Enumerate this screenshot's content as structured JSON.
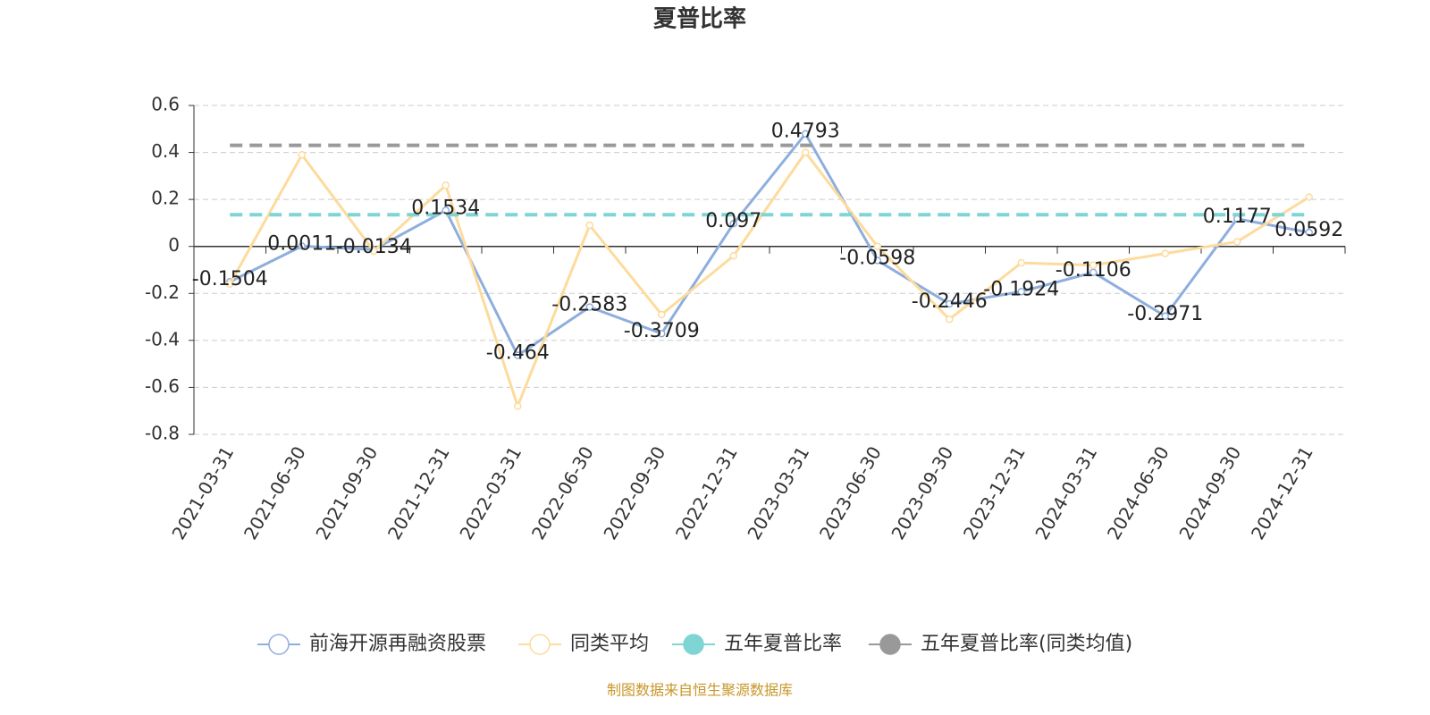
{
  "chart_data": {
    "type": "line",
    "title": "夏普比率",
    "categories": [
      "2021-03-31",
      "2021-06-30",
      "2021-09-30",
      "2021-12-31",
      "2022-03-31",
      "2022-06-30",
      "2022-09-30",
      "2022-12-31",
      "2023-03-31",
      "2023-06-30",
      "2023-09-30",
      "2023-12-31",
      "2024-03-31",
      "2024-06-30",
      "2024-09-30",
      "2024-12-31"
    ],
    "series": [
      {
        "name": "前海开源再融资股票",
        "color": "#8eaede",
        "line_style": "solid",
        "show_labels": true,
        "values": [
          -0.1504,
          0.0011,
          -0.0134,
          0.1534,
          -0.464,
          -0.2583,
          -0.3709,
          0.097,
          0.4793,
          -0.0598,
          -0.2446,
          -0.1924,
          -0.1106,
          -0.2971,
          0.1177,
          0.0592
        ]
      },
      {
        "name": "同类平均",
        "color": "#fddb9c",
        "line_style": "solid",
        "show_labels": false,
        "values": [
          -0.16,
          0.39,
          -0.02,
          0.26,
          -0.68,
          0.09,
          -0.29,
          -0.04,
          0.4,
          0.0,
          -0.31,
          -0.07,
          -0.08,
          -0.03,
          0.02,
          0.21
        ]
      },
      {
        "name": "五年夏普比率",
        "color": "#7fd4d4",
        "line_style": "dashed",
        "show_labels": false,
        "values": [
          0.135,
          0.135,
          0.135,
          0.135,
          0.135,
          0.135,
          0.135,
          0.135,
          0.135,
          0.135,
          0.135,
          0.135,
          0.135,
          0.135,
          0.135,
          0.135
        ]
      },
      {
        "name": "五年夏普比率(同类均值)",
        "color": "#999999",
        "line_style": "dashed",
        "show_labels": false,
        "values": [
          0.43,
          0.43,
          0.43,
          0.43,
          0.43,
          0.43,
          0.43,
          0.43,
          0.43,
          0.43,
          0.43,
          0.43,
          0.43,
          0.43,
          0.43,
          0.43
        ]
      }
    ],
    "ylim": [
      -0.8,
      0.6
    ],
    "yticks": [
      -0.8,
      -0.6,
      -0.4,
      -0.2,
      0,
      0.2,
      0.4,
      0.6
    ],
    "grid": true,
    "footer": "制图数据来自恒生聚源数据库"
  }
}
